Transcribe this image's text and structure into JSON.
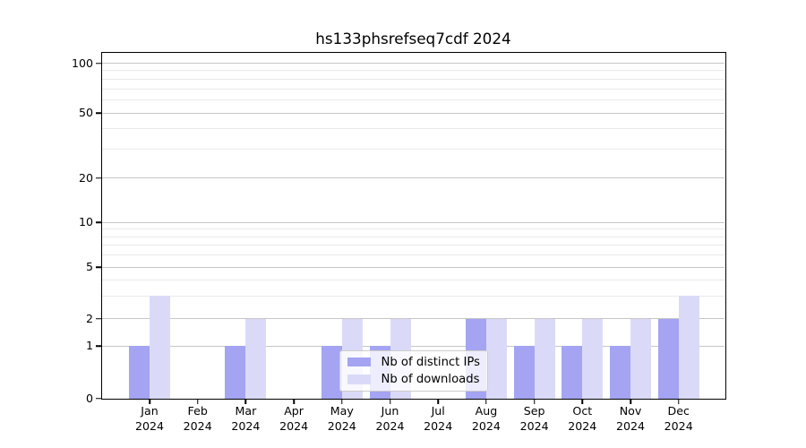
{
  "chart_data": {
    "type": "bar",
    "title": "hs133phsrefseq7cdf 2024",
    "categories": [
      "Jan",
      "Feb",
      "Mar",
      "Apr",
      "May",
      "Jun",
      "Jul",
      "Aug",
      "Sep",
      "Oct",
      "Nov",
      "Dec"
    ],
    "category_year": "2024",
    "series": [
      {
        "name": "Nb of distinct IPs",
        "color": "#a4a4f3",
        "values": [
          1,
          0,
          1,
          0,
          1,
          1,
          0,
          2,
          1,
          1,
          1,
          2
        ]
      },
      {
        "name": "Nb of downloads",
        "color": "#dadaf8",
        "values": [
          3,
          0,
          2,
          0,
          2,
          2,
          0,
          2,
          2,
          2,
          2,
          3
        ]
      }
    ],
    "xlabel": "",
    "ylabel": "",
    "yscale": "log-like with zero baseline",
    "yticks": [
      0,
      1,
      2,
      5,
      10,
      20,
      50,
      100
    ],
    "minor_gridlines": [
      3,
      4,
      6,
      7,
      8,
      9,
      30,
      40,
      60,
      70,
      80,
      90
    ],
    "ylim": [
      0,
      115
    ],
    "grid": true,
    "legend_position": "inside bottom-center",
    "colors": {
      "axis": "#000000",
      "grid_major": "#c6c6c6",
      "grid_minor": "#eaeaea",
      "legend_border": "#cccccc",
      "background": "#ffffff"
    }
  }
}
